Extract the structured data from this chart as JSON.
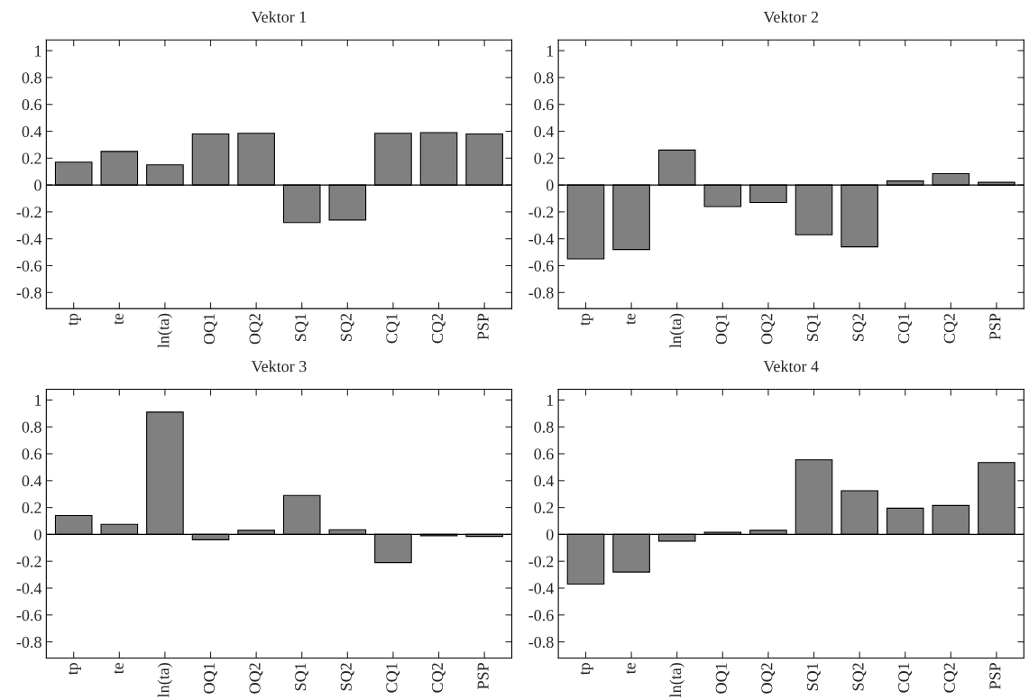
{
  "chart_data": [
    {
      "type": "bar",
      "title": "Vektor 1",
      "categories": [
        "tp",
        "te",
        "ln(ta)",
        "OQ1",
        "OQ2",
        "SQ1",
        "SQ2",
        "CQ1",
        "CQ2",
        "PSP"
      ],
      "color": "#808080",
      "values": [
        0.17,
        0.25,
        0.15,
        0.38,
        0.385,
        -0.28,
        -0.26,
        0.385,
        0.39,
        0.38
      ],
      "ylim": [
        -0.92,
        1.08
      ],
      "yticks": [
        -0.8,
        -0.6,
        -0.4,
        -0.2,
        0,
        0.2,
        0.4,
        0.6,
        0.8,
        1
      ],
      "ref_lines": [
        {
          "axis": "y",
          "value": 0,
          "color": "#000000"
        }
      ]
    },
    {
      "type": "bar",
      "title": "Vektor 2",
      "categories": [
        "tp",
        "te",
        "ln(ta)",
        "OQ1",
        "OQ2",
        "SQ1",
        "SQ2",
        "CQ1",
        "CQ2",
        "PSP"
      ],
      "color": "#808080",
      "values": [
        -0.55,
        -0.48,
        0.26,
        -0.16,
        -0.13,
        -0.37,
        -0.46,
        0.03,
        0.085,
        0.02
      ],
      "ylim": [
        -0.92,
        1.08
      ],
      "yticks": [
        -0.8,
        -0.6,
        -0.4,
        -0.2,
        0,
        0.2,
        0.4,
        0.6,
        0.8,
        1
      ],
      "ref_lines": [
        {
          "axis": "y",
          "value": 0,
          "color": "#000000"
        }
      ]
    },
    {
      "type": "bar",
      "title": "Vektor 3",
      "categories": [
        "tp",
        "te",
        "ln(ta)",
        "OQ1",
        "OQ2",
        "SQ1",
        "SQ2",
        "CQ1",
        "CQ2",
        "PSP"
      ],
      "color": "#808080",
      "values": [
        0.14,
        0.075,
        0.91,
        -0.04,
        0.03,
        0.29,
        0.035,
        -0.21,
        -0.01,
        -0.015
      ],
      "ylim": [
        -0.92,
        1.08
      ],
      "yticks": [
        -0.8,
        -0.6,
        -0.4,
        -0.2,
        0,
        0.2,
        0.4,
        0.6,
        0.8,
        1
      ],
      "ref_lines": [
        {
          "axis": "y",
          "value": 0,
          "color": "#000000"
        }
      ]
    },
    {
      "type": "bar",
      "title": "Vektor 4",
      "categories": [
        "tp",
        "te",
        "ln(ta)",
        "OQ1",
        "OQ2",
        "SQ1",
        "SQ2",
        "CQ1",
        "CQ2",
        "PSP"
      ],
      "color": "#808080",
      "values": [
        -0.37,
        -0.28,
        -0.05,
        0.015,
        0.03,
        0.555,
        0.325,
        0.195,
        0.215,
        0.535
      ],
      "ylim": [
        -0.92,
        1.08
      ],
      "yticks": [
        -0.8,
        -0.6,
        -0.4,
        -0.2,
        0,
        0.2,
        0.4,
        0.6,
        0.8,
        1
      ],
      "ref_lines": [
        {
          "axis": "y",
          "value": 0,
          "color": "#000000"
        }
      ]
    }
  ]
}
